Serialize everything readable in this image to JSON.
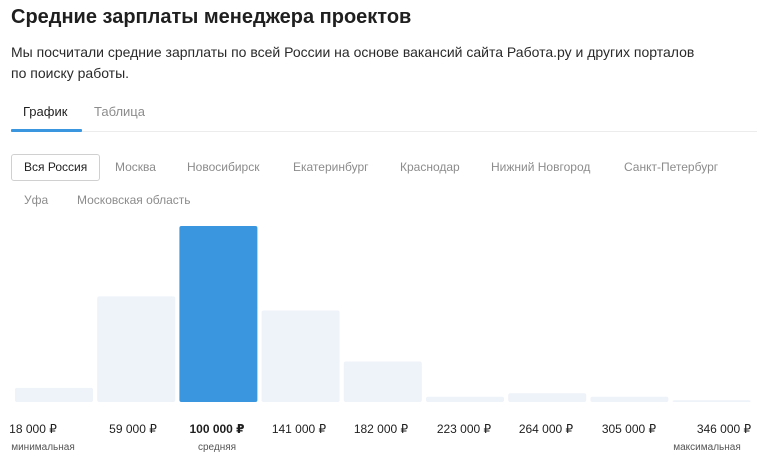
{
  "page": {
    "title": "Средние зарплаты менеджера проектов",
    "description": "Мы посчитали средние зарплаты по всей России на основе вакансий сайта Работа.ру и других порталов по поиску работы."
  },
  "tabs": [
    {
      "label": "График",
      "active": true
    },
    {
      "label": "Таблица",
      "active": false
    }
  ],
  "regions": [
    {
      "label": "Вся Россия",
      "active": true
    },
    {
      "label": "Москва",
      "active": false
    },
    {
      "label": "Новосибирск",
      "active": false
    },
    {
      "label": "Екатеринбург",
      "active": false
    },
    {
      "label": "Краснодар",
      "active": false
    },
    {
      "label": "Нижний Новгород",
      "active": false
    },
    {
      "label": "Санкт-Петербург",
      "active": false
    },
    {
      "label": "Уфа",
      "active": false
    },
    {
      "label": "Московская область",
      "active": false
    }
  ],
  "colors": {
    "accent": "#3a97df",
    "bar": "#eef2f9",
    "highlight_bar": "#3a97df"
  },
  "chart_data": {
    "type": "bar",
    "categories": [
      "18 000 ₽",
      "59 000 ₽",
      "100 000 ₽",
      "141 000 ₽",
      "182 000 ₽",
      "223 000 ₽",
      "264 000 ₽",
      "305 000 ₽",
      "346 000 ₽"
    ],
    "values": [
      8,
      60,
      100,
      52,
      23,
      3,
      5,
      3,
      1
    ],
    "highlight_index": 2,
    "bold_index": 2,
    "ylim": [
      0,
      100
    ],
    "grid": false,
    "sublabels": [
      {
        "index": 0,
        "text": "минимальная"
      },
      {
        "index": 2,
        "text": "средняя"
      },
      {
        "index": 8,
        "text": "максимальная"
      }
    ]
  }
}
